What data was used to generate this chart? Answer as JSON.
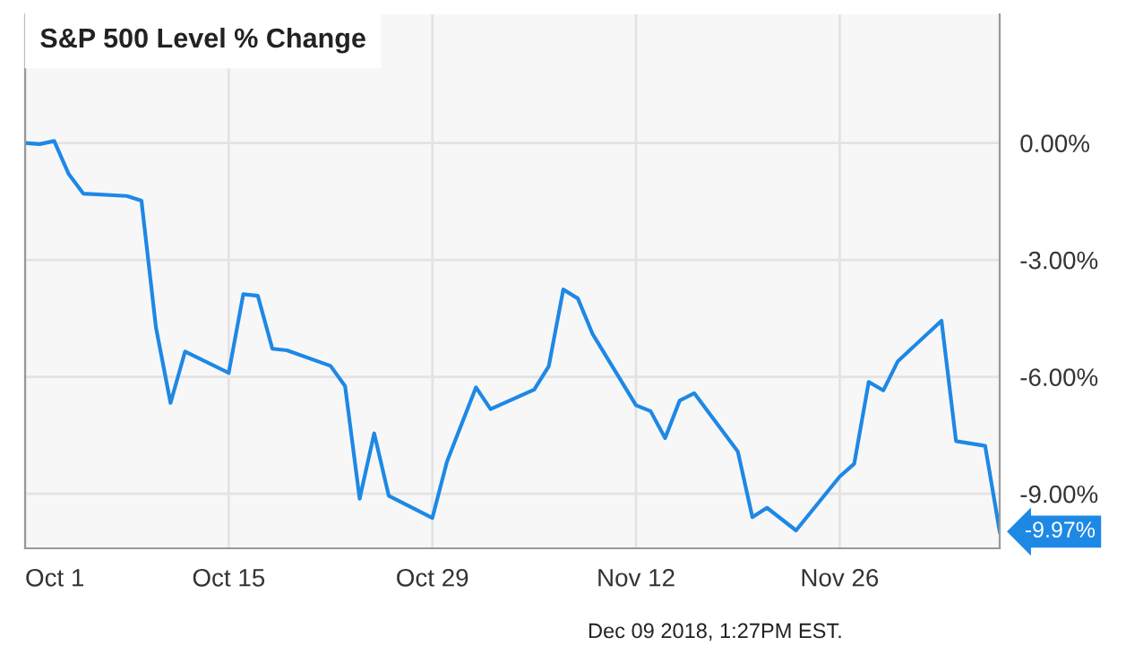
{
  "chart_data": {
    "type": "line",
    "title": "S&P 500 Level % Change",
    "x": [
      "2018-10-01",
      "2018-10-02",
      "2018-10-03",
      "2018-10-04",
      "2018-10-05",
      "2018-10-08",
      "2018-10-09",
      "2018-10-10",
      "2018-10-11",
      "2018-10-12",
      "2018-10-15",
      "2018-10-16",
      "2018-10-17",
      "2018-10-18",
      "2018-10-19",
      "2018-10-22",
      "2018-10-23",
      "2018-10-24",
      "2018-10-25",
      "2018-10-26",
      "2018-10-29",
      "2018-10-30",
      "2018-10-31",
      "2018-11-01",
      "2018-11-02",
      "2018-11-05",
      "2018-11-06",
      "2018-11-07",
      "2018-11-08",
      "2018-11-09",
      "2018-11-12",
      "2018-11-13",
      "2018-11-14",
      "2018-11-15",
      "2018-11-16",
      "2018-11-19",
      "2018-11-20",
      "2018-11-21",
      "2018-11-23",
      "2018-11-26",
      "2018-11-27",
      "2018-11-28",
      "2018-11-29",
      "2018-11-30",
      "2018-12-03",
      "2018-12-04",
      "2018-12-06",
      "2018-12-07"
    ],
    "series": [
      {
        "color": "#1e88e5",
        "values": [
          0.0,
          -0.03,
          0.05,
          -0.8,
          -1.3,
          -1.36,
          -1.48,
          -4.74,
          -6.67,
          -5.35,
          -5.9,
          -3.88,
          -3.92,
          -5.28,
          -5.32,
          -5.72,
          -6.24,
          -9.13,
          -7.45,
          -9.05,
          -9.62,
          -8.18,
          -7.22,
          -6.27,
          -6.83,
          -6.33,
          -5.73,
          -3.76,
          -3.99,
          -4.89,
          -6.73,
          -6.88,
          -7.57,
          -6.61,
          -6.42,
          -7.92,
          -9.6,
          -9.36,
          -9.94,
          -8.56,
          -8.23,
          -6.13,
          -6.35,
          -5.6,
          -4.56,
          -7.65,
          -7.77,
          -9.97
        ]
      }
    ],
    "xlim": [
      "2018-10-01",
      "2018-12-07"
    ],
    "ylim": [
      -10.4,
      3.3
    ],
    "xticks": [
      {
        "value": "2018-10-01",
        "label": "Oct 1"
      },
      {
        "value": "2018-10-15",
        "label": "Oct 15"
      },
      {
        "value": "2018-10-29",
        "label": "Oct 29"
      },
      {
        "value": "2018-11-12",
        "label": "Nov 12"
      },
      {
        "value": "2018-11-26",
        "label": "Nov 26"
      }
    ],
    "yticks": [
      {
        "value": 0,
        "label": "0.00%"
      },
      {
        "value": -3,
        "label": "-3.00%"
      },
      {
        "value": -6,
        "label": "-6.00%"
      },
      {
        "value": -9,
        "label": "-9.00%"
      }
    ],
    "grid": true,
    "marker": "none",
    "line_style": "solid",
    "annotations": [
      {
        "text": "-9.97%",
        "x": "2018-12-07",
        "y": -9.97
      },
      "Dec 09 2018, 1:27PM EST."
    ]
  }
}
